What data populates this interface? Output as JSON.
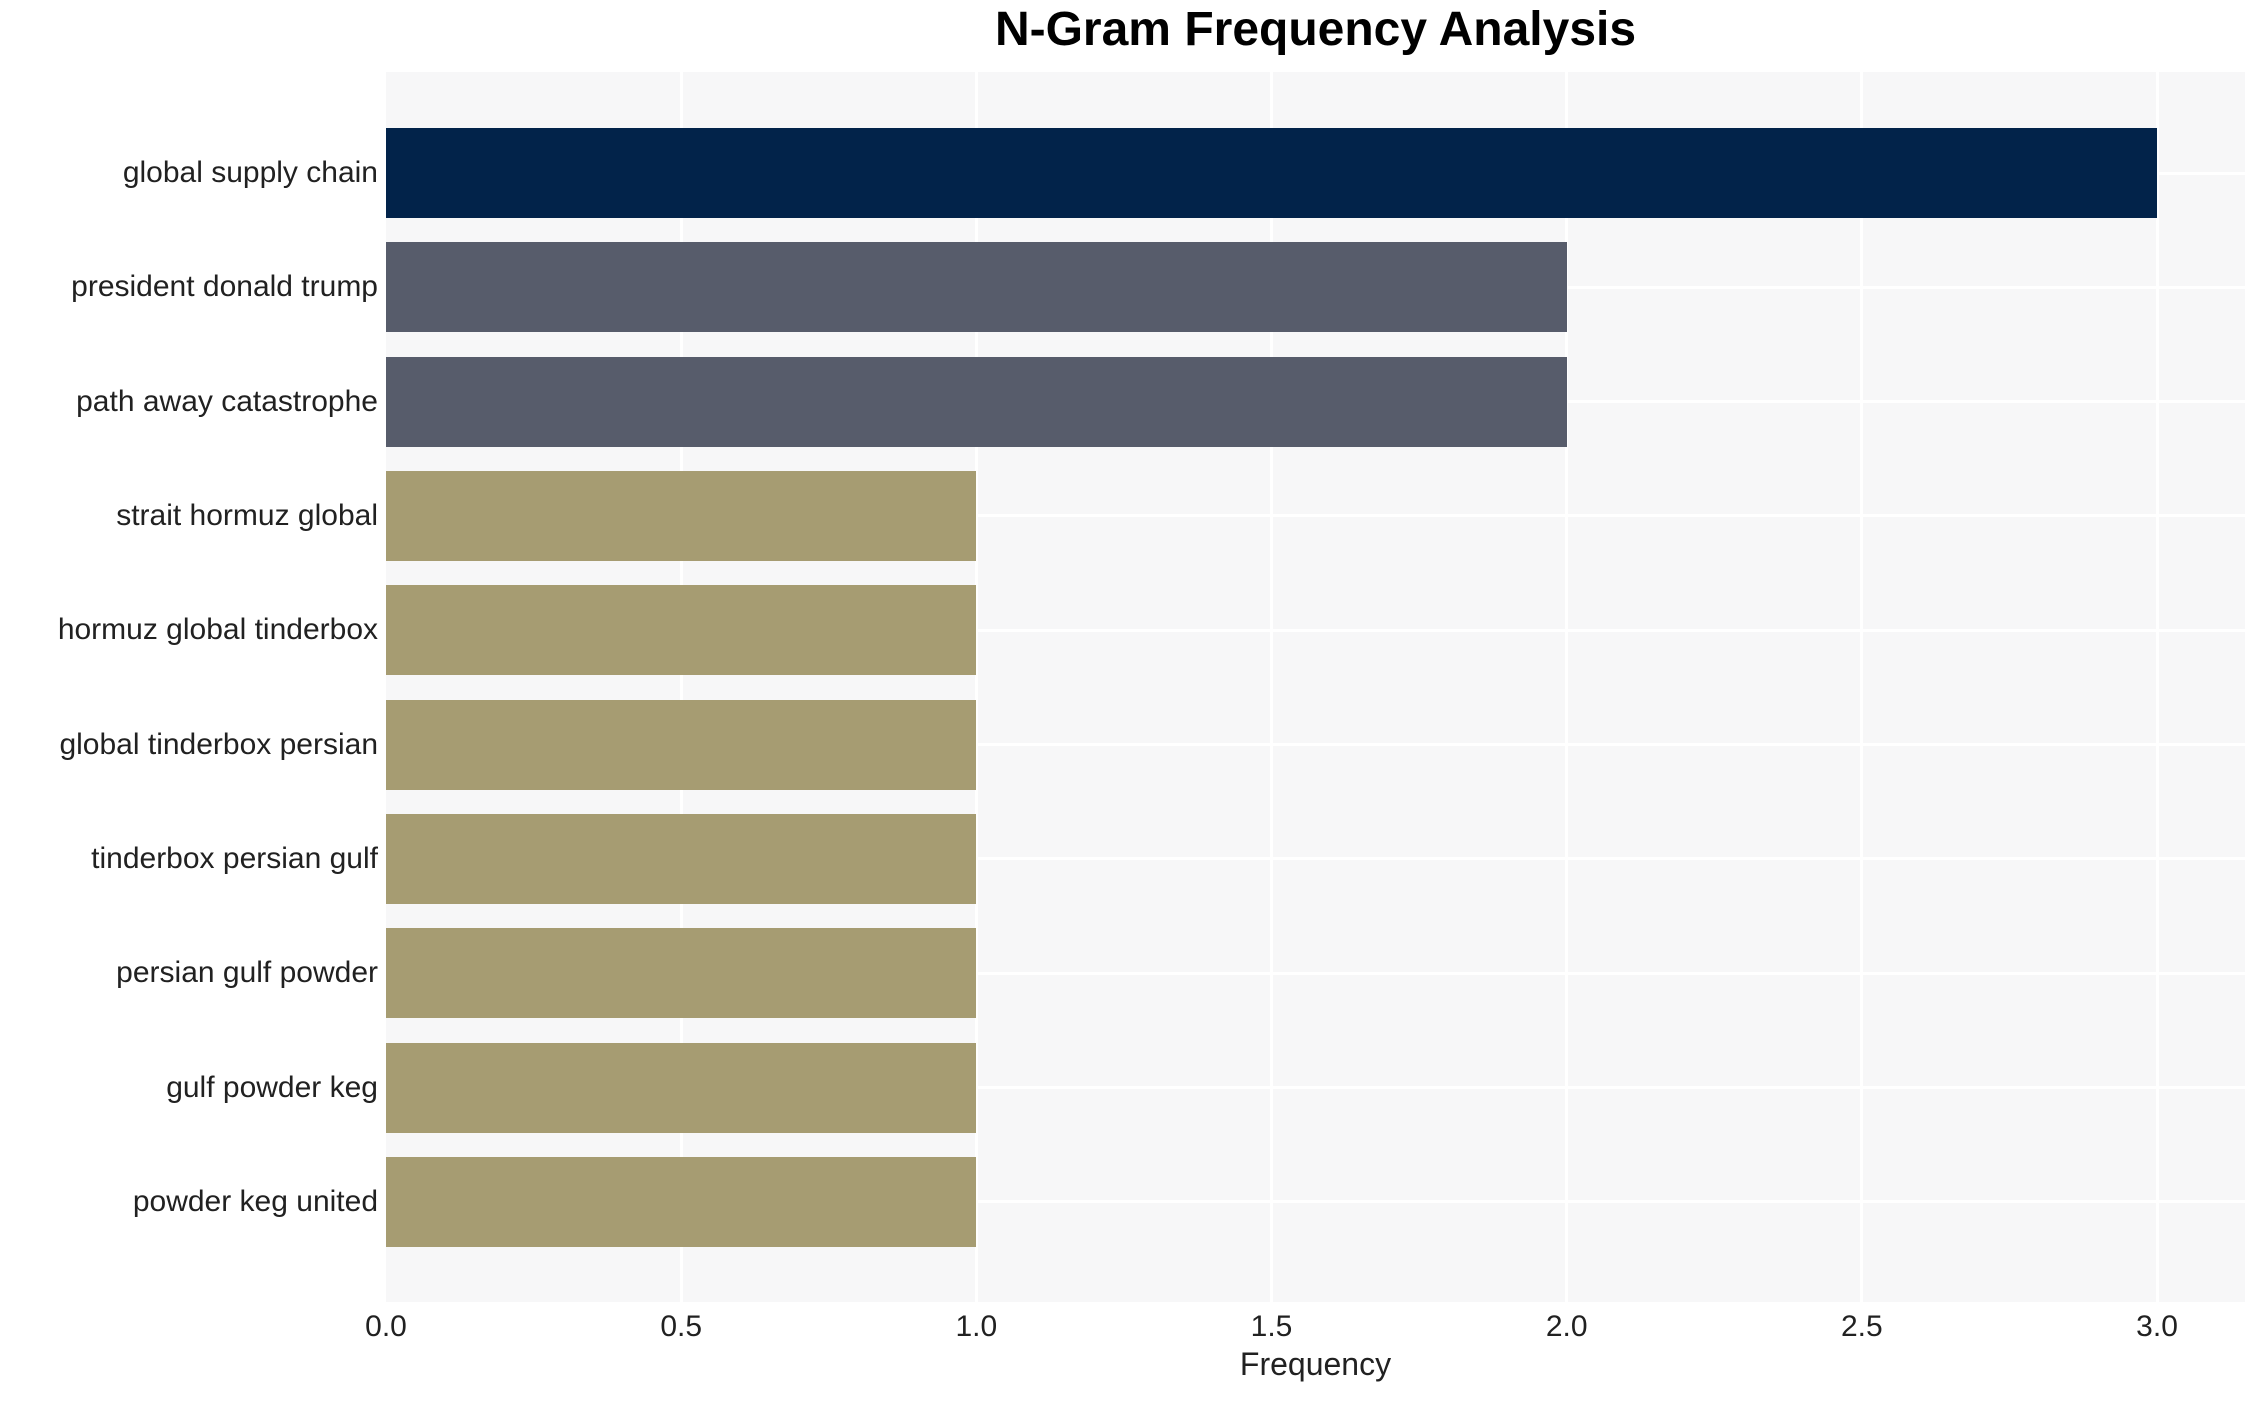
{
  "chart_data": {
    "type": "bar",
    "orientation": "horizontal",
    "title": "N-Gram Frequency Analysis",
    "xlabel": "Frequency",
    "ylabel": "",
    "categories": [
      "global supply chain",
      "president donald trump",
      "path away catastrophe",
      "strait hormuz global",
      "hormuz global tinderbox",
      "global tinderbox persian",
      "tinderbox persian gulf",
      "persian gulf powder",
      "gulf powder keg",
      "powder keg united"
    ],
    "values": [
      3,
      2,
      2,
      1,
      1,
      1,
      1,
      1,
      1,
      1
    ],
    "bar_colors": [
      "#02234a",
      "#575c6b",
      "#575c6b",
      "#a69c72",
      "#a69c72",
      "#a69c72",
      "#a69c72",
      "#a69c72",
      "#a69c72",
      "#a69c72"
    ],
    "xticks": [
      0,
      0.5,
      1,
      1.5,
      2,
      2.5,
      3
    ],
    "xtick_labels": [
      "0.0",
      "0.5",
      "1.0",
      "1.5",
      "2.0",
      "2.5",
      "3.0"
    ],
    "xlim": [
      0,
      3.149
    ],
    "grid": true,
    "legend_position": "none",
    "colors": {
      "plot_bg": "#f7f7f8",
      "grid": "#ffffff",
      "page_bg": "#ffffff",
      "title_text": "#000000",
      "tick_text": "#212121"
    }
  }
}
